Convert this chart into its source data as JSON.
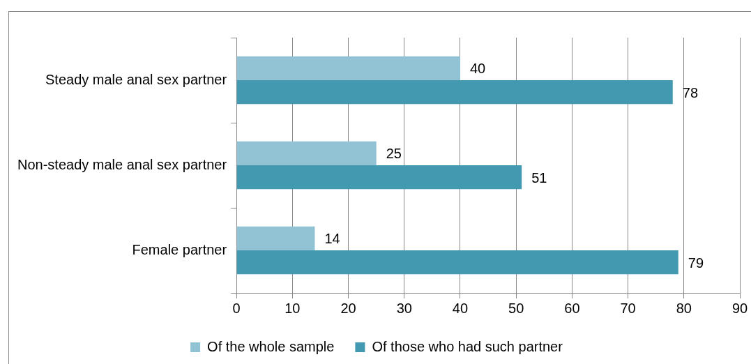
{
  "chart_data": {
    "type": "bar",
    "orientation": "horizontal",
    "categories": [
      "Steady male anal sex partner",
      "Non-steady male anal sex partner",
      "Female partner"
    ],
    "series": [
      {
        "name": "Of the whole sample",
        "color": "#92c3d4",
        "values": [
          40,
          25,
          14
        ]
      },
      {
        "name": "Of those who had such partner",
        "color": "#4399b0",
        "values": [
          78,
          51,
          79
        ]
      }
    ],
    "xlim": [
      0,
      90
    ],
    "xticks": [
      0,
      10,
      20,
      30,
      40,
      50,
      60,
      70,
      80,
      90
    ],
    "grid": "x",
    "legend": "bottom",
    "data_labels": true
  }
}
